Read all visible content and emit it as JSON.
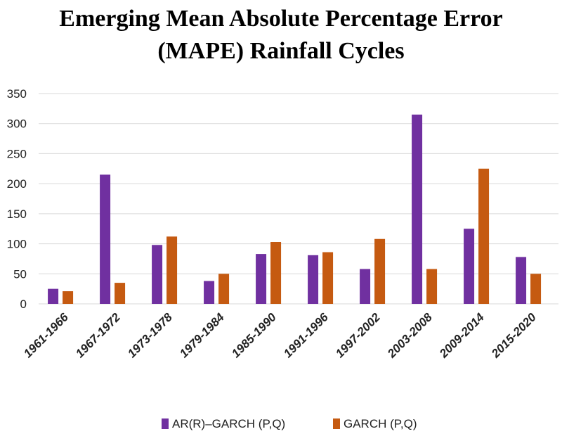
{
  "chart_data": {
    "type": "bar",
    "title_line1": "Emerging Mean Absolute Percentage Error",
    "title_line2": "(MAPE) Rainfall Cycles",
    "categories": [
      "1961-1966",
      "1967-1972",
      "1973-1978",
      "1979-1984",
      "1985-1990",
      "1991-1996",
      "1997-2002",
      "2003-2008",
      "2009-2014",
      "2015-2020"
    ],
    "series": [
      {
        "name": "AR(R)–GARCH (P,Q)",
        "color": "#7030a0",
        "values": [
          25,
          215,
          98,
          38,
          83,
          81,
          58,
          315,
          125,
          78
        ]
      },
      {
        "name": "GARCH (P,Q)",
        "color": "#c55a11",
        "values": [
          21,
          35,
          112,
          50,
          103,
          86,
          108,
          58,
          225,
          50
        ]
      }
    ],
    "ylim": [
      0,
      350
    ],
    "yticks": [
      0,
      50,
      100,
      150,
      200,
      250,
      300,
      350
    ],
    "grid": true,
    "legend_position": "bottom"
  }
}
